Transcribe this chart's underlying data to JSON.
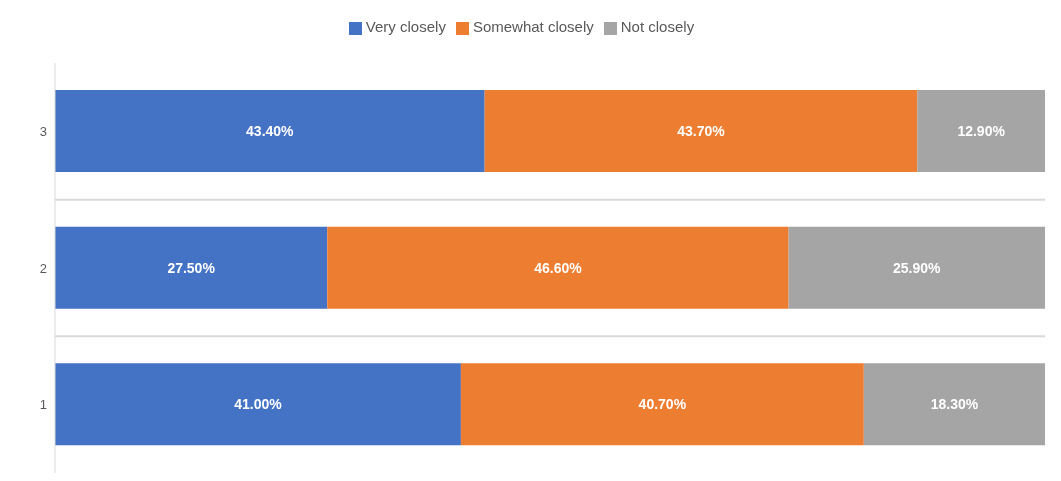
{
  "chart_data": {
    "type": "bar",
    "orientation": "horizontal",
    "stacked": true,
    "categories": [
      "3",
      "2",
      "1"
    ],
    "series": [
      {
        "name": "Very closely",
        "color": "#4472c4",
        "values": [
          43.4,
          27.5,
          41.0
        ],
        "value_labels": [
          "43.40%",
          "27.50%",
          "41.00%"
        ]
      },
      {
        "name": "Somewhat closely",
        "color": "#ed7d31",
        "values": [
          43.7,
          46.6,
          40.7
        ],
        "value_labels": [
          "43.70%",
          "46.60%",
          "40.70%"
        ]
      },
      {
        "name": "Not closely",
        "color": "#a5a5a5",
        "values": [
          12.9,
          25.9,
          18.3
        ],
        "value_labels": [
          "12.90%",
          "25.90%",
          "18.30%"
        ]
      }
    ],
    "grid": "y",
    "legend": "top",
    "tick_labels": "y"
  }
}
